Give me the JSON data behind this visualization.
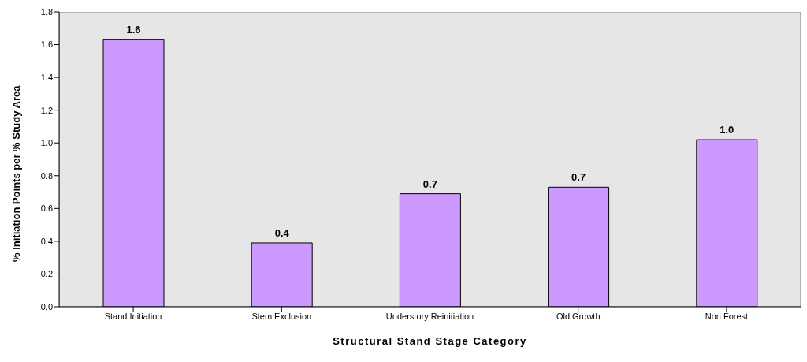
{
  "chart_data": {
    "type": "bar",
    "xlabel": "Structural Stand Stage Category",
    "ylabel": "% Initiation Points per % Study Area",
    "categories": [
      "Stand Initiation",
      "Stem Exclusion",
      "Understory Reinitiation",
      "Old Growth",
      "Non Forest"
    ],
    "values": [
      1.63,
      0.39,
      0.69,
      0.73,
      1.02
    ],
    "value_labels": [
      "1.6",
      "0.4",
      "0.7",
      "0.7",
      "1.0"
    ],
    "color": "#cc99ff",
    "ylim": [
      0,
      1.8
    ],
    "yticks": [
      {
        "value": 0,
        "label": "0.0"
      },
      {
        "value": 0.2,
        "label": "0.2"
      },
      {
        "value": 0.4,
        "label": "0.4"
      },
      {
        "value": 0.6,
        "label": "0.6"
      },
      {
        "value": 0.8,
        "label": "0.8"
      },
      {
        "value": 1,
        "label": "1.0"
      },
      {
        "value": 1.2,
        "label": "1.2"
      },
      {
        "value": 1.4,
        "label": "1.4"
      },
      {
        "value": 1.6,
        "label": "1.6"
      },
      {
        "value": 1.8,
        "label": "1.8"
      }
    ],
    "grid": false,
    "legend": false
  }
}
